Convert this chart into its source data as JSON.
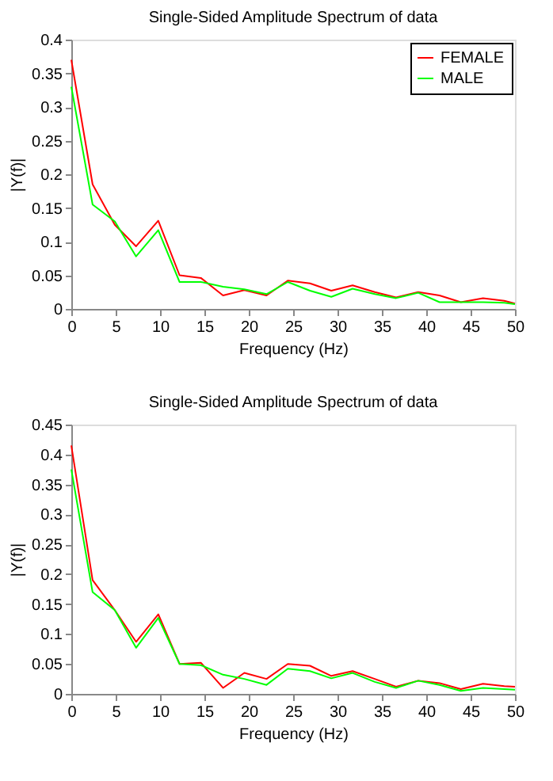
{
  "chart_data": [
    {
      "type": "line",
      "title": "Single-Sided Amplitude Spectrum of data",
      "xlabel": "Frequency (Hz)",
      "ylabel": "|Y(f)|",
      "x": [
        0,
        2.4,
        4.9,
        7.3,
        9.8,
        12.2,
        14.6,
        17.1,
        19.5,
        22,
        24.4,
        26.9,
        29.3,
        31.7,
        34.2,
        36.6,
        39.1,
        41.5,
        43.9,
        46.4,
        48.8,
        50
      ],
      "series": [
        {
          "name": "FEMALE",
          "color": "#ff0000",
          "values": [
            0.37,
            0.185,
            0.125,
            0.093,
            0.131,
            0.05,
            0.046,
            0.02,
            0.028,
            0.02,
            0.042,
            0.038,
            0.027,
            0.035,
            0.025,
            0.017,
            0.025,
            0.02,
            0.01,
            0.016,
            0.012,
            0.008
          ]
        },
        {
          "name": "MALE",
          "color": "#00ff00",
          "values": [
            0.33,
            0.155,
            0.13,
            0.078,
            0.117,
            0.04,
            0.04,
            0.033,
            0.029,
            0.022,
            0.04,
            0.027,
            0.018,
            0.03,
            0.022,
            0.016,
            0.024,
            0.01,
            0.01,
            0.01,
            0.009,
            0.007
          ]
        }
      ],
      "xlim": [
        0,
        50
      ],
      "xticks": [
        0,
        5,
        10,
        15,
        20,
        25,
        30,
        35,
        40,
        45,
        50
      ],
      "ylim": [
        0,
        0.4
      ],
      "yticks": [
        0,
        0.05,
        0.1,
        0.15,
        0.2,
        0.25,
        0.3,
        0.35,
        0.4
      ],
      "legend": "top right",
      "grid": false,
      "line_style": "solid",
      "marker": "none"
    },
    {
      "type": "line",
      "title": "Single-Sided Amplitude Spectrum of data",
      "xlabel": "Frequency (Hz)",
      "ylabel": "|Y(f)|",
      "x": [
        0,
        2.4,
        4.9,
        7.3,
        9.8,
        12.2,
        14.6,
        17.1,
        19.5,
        22,
        24.4,
        26.9,
        29.3,
        31.7,
        34.2,
        36.6,
        39.1,
        41.5,
        43.9,
        46.4,
        48.8,
        50
      ],
      "series": [
        {
          "name": "FEMALE",
          "color": "#ff0000",
          "values": [
            0.415,
            0.19,
            0.14,
            0.087,
            0.133,
            0.05,
            0.052,
            0.01,
            0.035,
            0.025,
            0.05,
            0.047,
            0.03,
            0.038,
            0.025,
            0.012,
            0.022,
            0.018,
            0.008,
            0.017,
            0.013,
            0.012
          ]
        },
        {
          "name": "MALE",
          "color": "#00ff00",
          "values": [
            0.375,
            0.17,
            0.14,
            0.077,
            0.127,
            0.05,
            0.048,
            0.032,
            0.025,
            0.015,
            0.042,
            0.038,
            0.026,
            0.035,
            0.02,
            0.01,
            0.022,
            0.015,
            0.005,
            0.01,
            0.008,
            0.007
          ]
        }
      ],
      "xlim": [
        0,
        50
      ],
      "xticks": [
        0,
        5,
        10,
        15,
        20,
        25,
        30,
        35,
        40,
        45,
        50
      ],
      "ylim": [
        0,
        0.45
      ],
      "yticks": [
        0,
        0.05,
        0.1,
        0.15,
        0.2,
        0.25,
        0.3,
        0.35,
        0.4,
        0.45
      ],
      "legend": "top right",
      "grid": false,
      "line_style": "solid",
      "marker": "none"
    }
  ]
}
